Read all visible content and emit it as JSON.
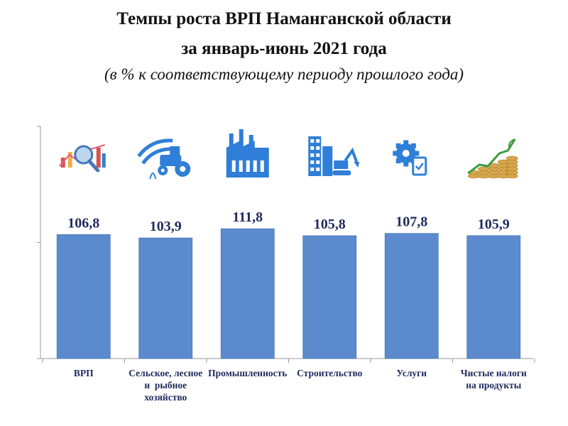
{
  "header": {
    "title_line1": "Темпы роста ВРП Наманганской области",
    "title_line2": "за январь-июнь 2021 года",
    "subtitle": "(в % к соответствующему периоду прошлого года)"
  },
  "colors": {
    "bar": "#5b8bcc",
    "bar_edge": "#4a78b8",
    "icon_blue": "#2f7fd8",
    "label": "#1f2a5c",
    "axis": "#9a9a9a"
  },
  "chart_data": {
    "type": "bar",
    "title": "Темпы роста ВРП Наманганской области за январь-июнь 2021 года",
    "subtitle": "(в % к соответствующему периоду прошлого года)",
    "categories": [
      "ВРП",
      "Сельское, лесное и рыбное хозяйство",
      "Промышленность",
      "Строительство",
      "Услуги",
      "Чистые налоги на продукты"
    ],
    "category_lines": [
      [
        "ВРП"
      ],
      [
        "Сельское, лесное",
        "и  рыбное",
        "хозяйство"
      ],
      [
        "Промышленность"
      ],
      [
        "Строительство"
      ],
      [
        "Услуги"
      ],
      [
        "Чистые налоги",
        "на продукты"
      ]
    ],
    "values": [
      106.8,
      103.9,
      111.8,
      105.8,
      107.8,
      105.9
    ],
    "value_labels": [
      "106,8",
      "103,9",
      "111,8",
      "105,8",
      "107,8",
      "105,9"
    ],
    "icons": [
      "chart-magnifier-icon",
      "tractor-icon",
      "factory-icon",
      "construction-icon",
      "gear-services-icon",
      "money-growth-icon"
    ],
    "xlabel": "",
    "ylabel": "",
    "ylim": [
      0,
      200
    ],
    "grid": false,
    "legend": "none"
  }
}
